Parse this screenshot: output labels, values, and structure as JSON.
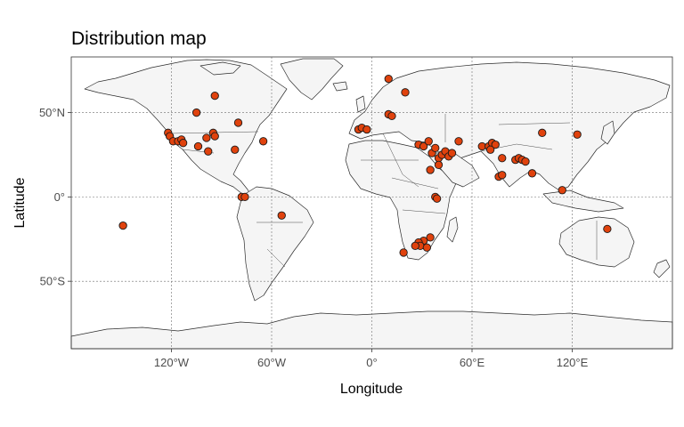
{
  "title": "Distribution map",
  "chart_data": {
    "type": "scatter",
    "title": "Distribution map",
    "xlabel": "Longitude",
    "ylabel": "Latitude",
    "xlim": [
      -180,
      180
    ],
    "ylim": [
      -90,
      83
    ],
    "grid": true,
    "x_ticks": [
      {
        "value": -120,
        "label": "120°W"
      },
      {
        "value": -60,
        "label": "60°W"
      },
      {
        "value": 0,
        "label": "0°"
      },
      {
        "value": 60,
        "label": "60°E"
      },
      {
        "value": 120,
        "label": "120°E"
      }
    ],
    "y_ticks": [
      {
        "value": 50,
        "label": "50°N"
      },
      {
        "value": 0,
        "label": "0°"
      },
      {
        "value": -50,
        "label": "50°S"
      }
    ],
    "points": [
      {
        "lon": -94,
        "lat": 60
      },
      {
        "lon": -105,
        "lat": 50
      },
      {
        "lon": -122,
        "lat": 38
      },
      {
        "lon": -121,
        "lat": 36
      },
      {
        "lon": -119,
        "lat": 33
      },
      {
        "lon": -116,
        "lat": 33
      },
      {
        "lon": -114,
        "lat": 34
      },
      {
        "lon": -113,
        "lat": 32
      },
      {
        "lon": -104,
        "lat": 30
      },
      {
        "lon": -99,
        "lat": 35
      },
      {
        "lon": -95,
        "lat": 38
      },
      {
        "lon": -94,
        "lat": 36
      },
      {
        "lon": -98,
        "lat": 27
      },
      {
        "lon": -80,
        "lat": 44
      },
      {
        "lon": -82,
        "lat": 28
      },
      {
        "lon": -65,
        "lat": 33
      },
      {
        "lon": -78,
        "lat": 0
      },
      {
        "lon": -76,
        "lat": 0
      },
      {
        "lon": -54,
        "lat": -11
      },
      {
        "lon": -149,
        "lat": -17
      },
      {
        "lon": 10,
        "lat": 70
      },
      {
        "lon": 20,
        "lat": 62
      },
      {
        "lon": 10,
        "lat": 49
      },
      {
        "lon": 12,
        "lat": 48
      },
      {
        "lon": -8,
        "lat": 40
      },
      {
        "lon": -6,
        "lat": 41
      },
      {
        "lon": -3,
        "lat": 40
      },
      {
        "lon": 28,
        "lat": 31
      },
      {
        "lon": 31,
        "lat": 30
      },
      {
        "lon": 34,
        "lat": 33
      },
      {
        "lon": 36,
        "lat": 26
      },
      {
        "lon": 38,
        "lat": 29
      },
      {
        "lon": 40,
        "lat": 23
      },
      {
        "lon": 42,
        "lat": 25
      },
      {
        "lon": 44,
        "lat": 27
      },
      {
        "lon": 46,
        "lat": 24
      },
      {
        "lon": 48,
        "lat": 26
      },
      {
        "lon": 52,
        "lat": 33
      },
      {
        "lon": 40,
        "lat": 19
      },
      {
        "lon": 35,
        "lat": 16
      },
      {
        "lon": 38,
        "lat": 0
      },
      {
        "lon": 39,
        "lat": -1
      },
      {
        "lon": 35,
        "lat": -24
      },
      {
        "lon": 31,
        "lat": -26
      },
      {
        "lon": 28,
        "lat": -27
      },
      {
        "lon": 29,
        "lat": -29
      },
      {
        "lon": 26,
        "lat": -29
      },
      {
        "lon": 33,
        "lat": -30
      },
      {
        "lon": 19,
        "lat": -33
      },
      {
        "lon": 66,
        "lat": 30
      },
      {
        "lon": 70,
        "lat": 30
      },
      {
        "lon": 72,
        "lat": 32
      },
      {
        "lon": 74,
        "lat": 31
      },
      {
        "lon": 71,
        "lat": 28
      },
      {
        "lon": 78,
        "lat": 23
      },
      {
        "lon": 76,
        "lat": 12
      },
      {
        "lon": 78,
        "lat": 13
      },
      {
        "lon": 86,
        "lat": 22
      },
      {
        "lon": 88,
        "lat": 23
      },
      {
        "lon": 90,
        "lat": 22
      },
      {
        "lon": 92,
        "lat": 21
      },
      {
        "lon": 96,
        "lat": 14
      },
      {
        "lon": 102,
        "lat": 38
      },
      {
        "lon": 114,
        "lat": 4
      },
      {
        "lon": 123,
        "lat": 37
      },
      {
        "lon": 141,
        "lat": -19
      }
    ]
  }
}
